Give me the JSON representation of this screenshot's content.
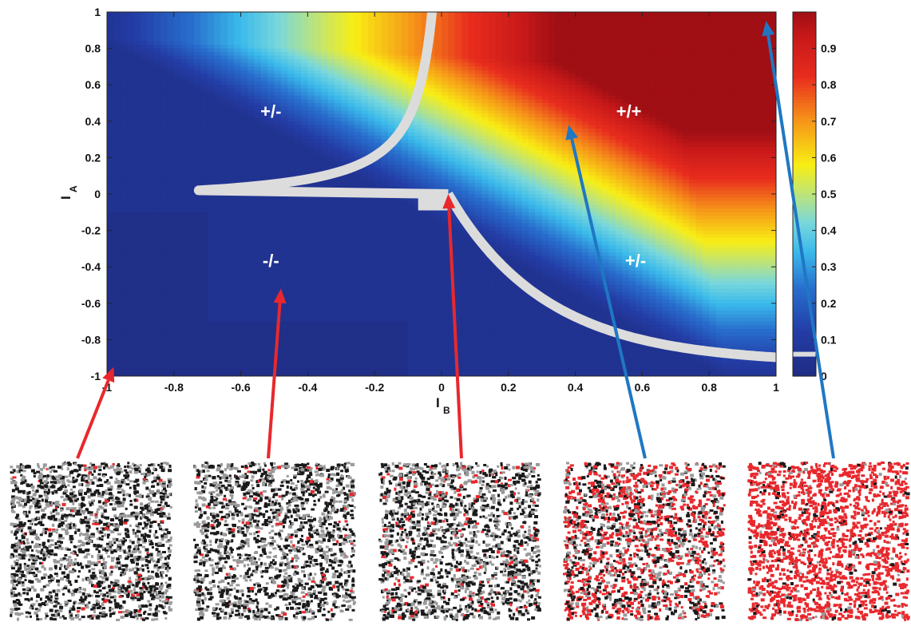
{
  "chart_data": {
    "type": "heatmap",
    "title": "",
    "xlabel": "I",
    "xlabel_sub": "B",
    "ylabel": "I",
    "ylabel_sub": "A",
    "xlim": [
      -1,
      1
    ],
    "ylim": [
      -1,
      1
    ],
    "x_ticks": [
      "-1",
      "-0.8",
      "-0.6",
      "-0.4",
      "-0.2",
      "0",
      "0.2",
      "0.4",
      "0.6",
      "0.8",
      "1"
    ],
    "y_ticks": [
      "1",
      "0.8",
      "0.6",
      "0.4",
      "0.2",
      "0",
      "-0.2",
      "-0.4",
      "-0.6",
      "-0.8",
      "-1"
    ],
    "x_tick_values": [
      -1,
      -0.8,
      -0.6,
      -0.4,
      -0.2,
      0,
      0.2,
      0.4,
      0.6,
      0.8,
      1
    ],
    "y_tick_values": [
      1,
      0.8,
      0.6,
      0.4,
      0.2,
      0,
      -0.2,
      -0.4,
      -0.6,
      -0.8,
      -1
    ],
    "colormap": "jet",
    "colorbar": {
      "range": [
        0,
        1
      ],
      "ticks": [
        "0.9",
        "0.8",
        "0.7",
        "0.6",
        "0.5",
        "0.4",
        "0.3",
        "0.2",
        "0.1",
        "0"
      ],
      "tick_values": [
        0.9,
        0.8,
        0.7,
        0.6,
        0.5,
        0.4,
        0.3,
        0.2,
        0.1,
        0
      ],
      "boundary_marker_value": 0.06
    },
    "boundary_color": "#dcdcdc",
    "regions": [
      {
        "label": "+/-",
        "x": -0.51,
        "y": 0.42
      },
      {
        "label": "+/+",
        "x": 0.56,
        "y": 0.42
      },
      {
        "label": "-/-",
        "x": -0.51,
        "y": -0.4
      },
      {
        "label": "+/-",
        "x": 0.58,
        "y": -0.4
      }
    ],
    "arrows": [
      {
        "color": "#e8282d",
        "x": -0.98,
        "y": -0.95,
        "panel": 0
      },
      {
        "color": "#e8282d",
        "x": -0.48,
        "y": -0.52,
        "panel": 1
      },
      {
        "color": "#e8282d",
        "x": 0.02,
        "y": 0.0,
        "panel": 2
      },
      {
        "color": "#1f77c4",
        "x": 0.38,
        "y": 0.38,
        "panel": 3
      },
      {
        "color": "#1f77c4",
        "x": 0.97,
        "y": 0.95,
        "panel": 4
      }
    ],
    "snapshot_panels": [
      {
        "red_fraction": 0.03
      },
      {
        "red_fraction": 0.04
      },
      {
        "red_fraction": 0.08
      },
      {
        "red_fraction": 0.45
      },
      {
        "red_fraction": 0.88
      }
    ],
    "snapshot_colors": {
      "red": "#e8282d",
      "black": "#1a1a1a",
      "gray": "#9a9a9a"
    }
  }
}
